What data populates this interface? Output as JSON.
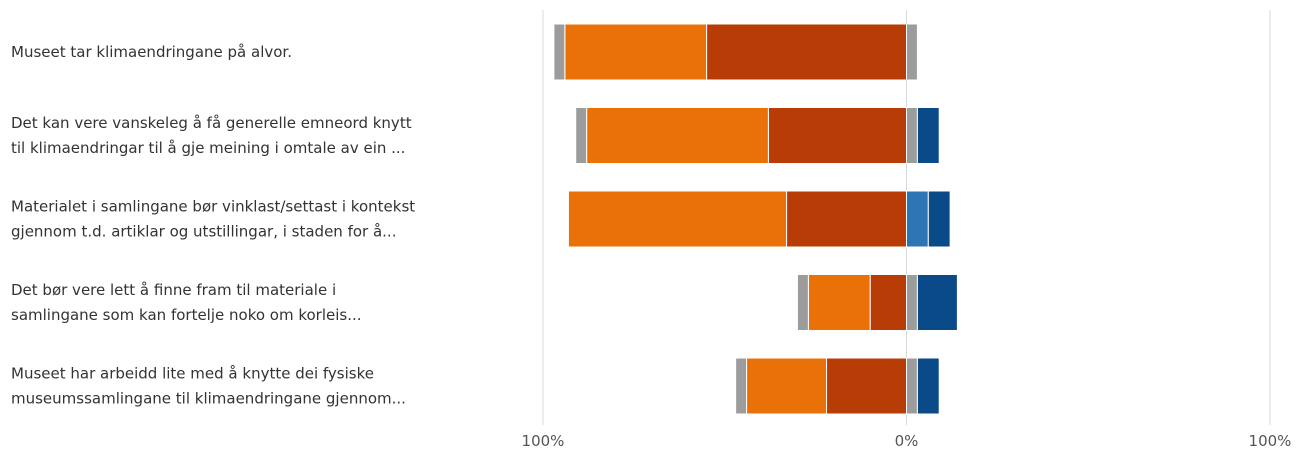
{
  "chart_data": {
    "type": "bar",
    "orientation": "horizontal",
    "stacked": "diverging",
    "categories": [
      [
        "Museet tar klimaendringane på alvor."
      ],
      [
        "Det kan vere vanskeleg å få generelle emneord knytt",
        "til klimaendringar til å gje meining i omtale av ein ..."
      ],
      [
        "Materialet i samlingane bør vinklast/settast i kontekst",
        "gjennom t.d. artiklar og utstillingar, i staden for å..."
      ],
      [
        "Det bør vere lett å finne fram til materiale i",
        "samlingane som kan fortelje noko om korleis..."
      ],
      [
        "Museet har arbeidd lite med å knytte dei fysiske",
        "museumssamlingane til klimaendringane gjennom..."
      ]
    ],
    "xlim": [
      -100,
      100
    ],
    "xticks": [
      "100%",
      "0%",
      "100%"
    ],
    "series_colors": [
      "#b83c05",
      "#ea7107",
      "#9c9c9c",
      "#9c9c9c",
      "#2e75b6",
      "#0b4a89"
    ],
    "series": [
      {
        "values": [
          -55,
          -38,
          -33,
          -10,
          -22
        ]
      },
      {
        "values": [
          -39,
          -50,
          -60,
          -17,
          -22
        ]
      },
      {
        "values": [
          -3,
          -3,
          0,
          -3,
          -3
        ]
      },
      {
        "values": [
          3,
          3,
          0,
          3,
          3
        ]
      },
      {
        "values": [
          0,
          0,
          6,
          0,
          0
        ]
      },
      {
        "values": [
          0,
          6,
          6,
          11,
          6
        ]
      }
    ],
    "grid": true
  }
}
